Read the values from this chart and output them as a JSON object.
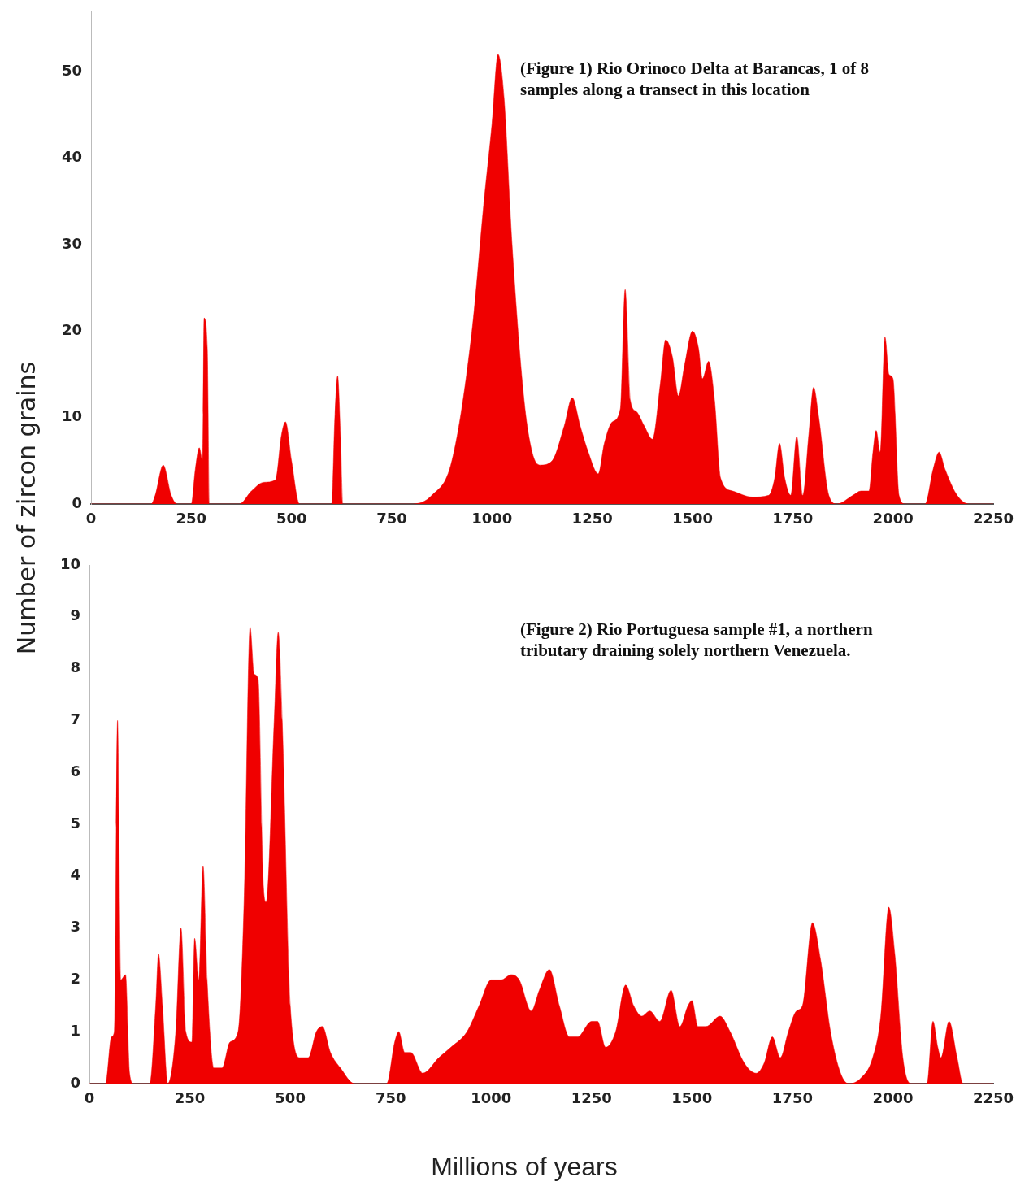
{
  "chart_data": [
    {
      "type": "area",
      "ylabel": "Number of zircon grains",
      "color": "#f00000",
      "marker": "none",
      "annotations": [
        "(Figure 1) Rio Orinoco Delta at Barancas, 1 of 8 samples along a transect in this location"
      ],
      "xlim": [
        0,
        2250
      ],
      "xticks": [
        0,
        250,
        500,
        750,
        1000,
        1250,
        1500,
        1750,
        2000,
        2250
      ],
      "ylim": [
        0,
        57
      ],
      "yticks": [
        0,
        10,
        20,
        30,
        40,
        50
      ],
      "x": [
        0,
        150,
        160,
        180,
        200,
        215,
        250,
        260,
        270,
        278,
        282,
        290,
        295,
        370,
        400,
        430,
        460,
        475,
        485,
        500,
        520,
        600,
        608,
        615,
        622,
        628,
        800,
        850,
        900,
        950,
        980,
        1000,
        1015,
        1030,
        1050,
        1080,
        1100,
        1120,
        1150,
        1180,
        1200,
        1220,
        1240,
        1265,
        1280,
        1300,
        1320,
        1332,
        1345,
        1360,
        1380,
        1400,
        1420,
        1433,
        1450,
        1465,
        1480,
        1500,
        1515,
        1525,
        1540,
        1555,
        1570,
        1600,
        1650,
        1690,
        1705,
        1717,
        1730,
        1745,
        1760,
        1775,
        1790,
        1802,
        1815,
        1840,
        1860,
        1900,
        1920,
        1940,
        1950,
        1958,
        1968,
        1980,
        1990,
        2000,
        2015,
        2030,
        2080,
        2100,
        2115,
        2130,
        2160,
        2190,
        2250
      ],
      "values": [
        0,
        0,
        1,
        4.5,
        1,
        0,
        0,
        4,
        6.5,
        5,
        21.5,
        18,
        0,
        0,
        1.5,
        2.5,
        2.8,
        8,
        9.5,
        5,
        0,
        0,
        10,
        14.8,
        8,
        0,
        0,
        1,
        5,
        20,
        35,
        44,
        52,
        47,
        30,
        12,
        6,
        4.5,
        5,
        9,
        12.3,
        9,
        6,
        3.5,
        7,
        9.5,
        11,
        24.8,
        12,
        10.7,
        9,
        7.5,
        14,
        19,
        17,
        12.5,
        16,
        20,
        18,
        14.5,
        16.5,
        12,
        3,
        1.5,
        0.8,
        1,
        3,
        7,
        3,
        1,
        7.8,
        1,
        8,
        13.5,
        10,
        1,
        0,
        1,
        1.5,
        1.5,
        6,
        8.5,
        6,
        19.3,
        15,
        14.5,
        1,
        0,
        0,
        4,
        6,
        4,
        1,
        0,
        0
      ]
    },
    {
      "type": "area",
      "xlabel": "Millions of years",
      "color": "#f00000",
      "marker": "none",
      "annotations": [
        "(Figure 2) Rio Portuguesa sample #1, a northern tributary draining solely northern Venezuela."
      ],
      "xlim": [
        0,
        2250
      ],
      "xticks": [
        0,
        250,
        500,
        750,
        1000,
        1250,
        1500,
        1750,
        2000,
        2250
      ],
      "ylim": [
        0,
        10
      ],
      "yticks": [
        0,
        1,
        2,
        3,
        4,
        5,
        6,
        7,
        8,
        9,
        10
      ],
      "x": [
        0,
        40,
        55,
        62,
        70,
        78,
        90,
        100,
        110,
        150,
        165,
        172,
        182,
        195,
        215,
        228,
        240,
        255,
        262,
        272,
        283,
        293,
        310,
        330,
        350,
        370,
        385,
        400,
        410,
        420,
        432,
        440,
        460,
        470,
        480,
        500,
        525,
        545,
        565,
        580,
        600,
        625,
        660,
        740,
        760,
        770,
        785,
        800,
        830,
        870,
        900,
        940,
        970,
        1000,
        1025,
        1050,
        1070,
        1100,
        1120,
        1145,
        1170,
        1195,
        1215,
        1250,
        1265,
        1285,
        1310,
        1335,
        1355,
        1375,
        1395,
        1420,
        1448,
        1470,
        1490,
        1500,
        1515,
        1535,
        1570,
        1595,
        1630,
        1660,
        1680,
        1700,
        1720,
        1740,
        1760,
        1775,
        1800,
        1820,
        1845,
        1870,
        1890,
        1920,
        1950,
        1970,
        1990,
        2005,
        2025,
        2045,
        2085,
        2100,
        2112,
        2120,
        2140,
        2160,
        2175,
        2250
      ],
      "values": [
        0,
        0,
        0.9,
        1,
        7,
        2,
        2.1,
        0.2,
        0,
        0,
        1.5,
        2.5,
        1.5,
        0,
        1,
        3,
        1,
        0.8,
        2.8,
        2,
        4.2,
        2,
        0.3,
        0.3,
        0.8,
        1,
        3.5,
        8.8,
        7.9,
        7.8,
        4,
        3.5,
        7,
        8.7,
        7,
        1.5,
        0.5,
        0.5,
        1,
        1.1,
        0.6,
        0.3,
        0,
        0,
        0.8,
        1,
        0.6,
        0.6,
        0.2,
        0.5,
        0.7,
        1,
        1.5,
        2,
        2,
        2.1,
        2,
        1.4,
        1.8,
        2.2,
        1.5,
        0.9,
        0.9,
        1.2,
        1.2,
        0.7,
        1,
        1.9,
        1.5,
        1.3,
        1.4,
        1.2,
        1.8,
        1.1,
        1.5,
        1.6,
        1.1,
        1.1,
        1.3,
        1,
        0.4,
        0.2,
        0.4,
        0.9,
        0.5,
        1,
        1.4,
        1.5,
        3.1,
        2.4,
        1,
        0.2,
        0,
        0.1,
        0.5,
        1.3,
        3.4,
        2.5,
        0.5,
        0,
        0,
        1.2,
        0.7,
        0.5,
        1.2,
        0.5,
        0,
        0
      ]
    }
  ]
}
